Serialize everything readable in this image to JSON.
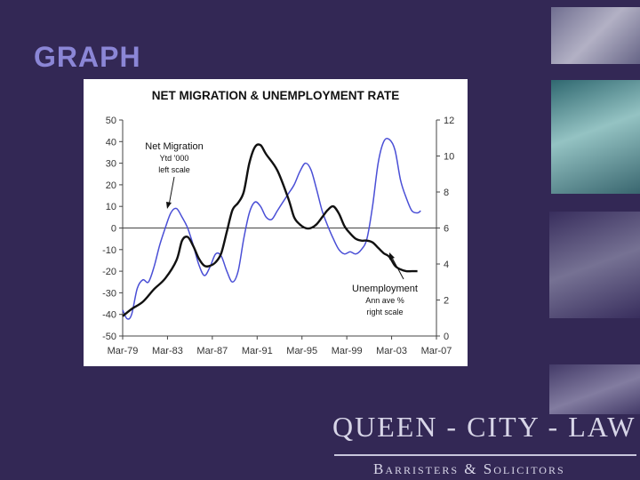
{
  "slide": {
    "title": "GRAPH"
  },
  "firm": {
    "name": "QUEEN - CITY - LAW",
    "tagline": "Barristers & Solicitors"
  },
  "decorations": [
    "pen-and-glasses-photo",
    "fountain-pen-photo",
    "keyboard-keys-photo",
    "clock-photo"
  ],
  "chart_data": {
    "type": "line",
    "title": "NET MIGRATION & UNEMPLOYMENT RATE",
    "x_ticks": [
      "Mar-79",
      "Mar-83",
      "Mar-87",
      "Mar-91",
      "Mar-95",
      "Mar-99",
      "Mar-03",
      "Mar-07"
    ],
    "y_left": {
      "min": -50,
      "max": 50,
      "ticks": [
        50,
        40,
        30,
        20,
        10,
        0,
        -10,
        -20,
        -30,
        -40,
        -50
      ]
    },
    "y_right": {
      "min": 0,
      "max": 12,
      "ticks": [
        12,
        10,
        8,
        6,
        4,
        2,
        0
      ]
    },
    "grid": false,
    "series": [
      {
        "name": "Net Migration",
        "annotation": [
          "Net Migration",
          "Ytd '000",
          "left scale"
        ],
        "axis": "left",
        "color": "#4a4fd6",
        "points": [
          [
            1979.2,
            -38
          ],
          [
            1979.6,
            -42
          ],
          [
            1980.0,
            -40
          ],
          [
            1980.5,
            -28
          ],
          [
            1981.0,
            -24
          ],
          [
            1981.5,
            -25
          ],
          [
            1982.0,
            -18
          ],
          [
            1982.5,
            -8
          ],
          [
            1983.0,
            0
          ],
          [
            1983.5,
            7
          ],
          [
            1984.0,
            9
          ],
          [
            1984.5,
            5
          ],
          [
            1985.0,
            0
          ],
          [
            1985.5,
            -8
          ],
          [
            1986.0,
            -17
          ],
          [
            1986.5,
            -22
          ],
          [
            1987.0,
            -18
          ],
          [
            1987.5,
            -12
          ],
          [
            1988.0,
            -13
          ],
          [
            1988.5,
            -20
          ],
          [
            1989.0,
            -25
          ],
          [
            1989.5,
            -20
          ],
          [
            1990.0,
            -5
          ],
          [
            1990.5,
            7
          ],
          [
            1991.0,
            12
          ],
          [
            1991.5,
            10
          ],
          [
            1992.0,
            5
          ],
          [
            1992.5,
            4
          ],
          [
            1993.0,
            8
          ],
          [
            1993.5,
            12
          ],
          [
            1994.0,
            16
          ],
          [
            1994.5,
            20
          ],
          [
            1995.0,
            26
          ],
          [
            1995.5,
            30
          ],
          [
            1996.0,
            27
          ],
          [
            1996.5,
            18
          ],
          [
            1997.0,
            8
          ],
          [
            1997.5,
            1
          ],
          [
            1998.0,
            -5
          ],
          [
            1998.5,
            -10
          ],
          [
            1999.0,
            -12
          ],
          [
            1999.5,
            -11
          ],
          [
            2000.0,
            -12
          ],
          [
            2000.5,
            -10
          ],
          [
            2001.0,
            -5
          ],
          [
            2001.5,
            10
          ],
          [
            2002.0,
            30
          ],
          [
            2002.5,
            40
          ],
          [
            2003.0,
            41
          ],
          [
            2003.5,
            36
          ],
          [
            2004.0,
            22
          ],
          [
            2004.5,
            14
          ],
          [
            2005.0,
            8
          ],
          [
            2005.5,
            7
          ],
          [
            2005.8,
            8
          ]
        ]
      },
      {
        "name": "Unemployment",
        "annotation": [
          "Unemployment",
          "Ann ave %",
          "right scale"
        ],
        "axis": "right",
        "color": "#111111",
        "points": [
          [
            1979.2,
            1.1
          ],
          [
            1980.0,
            1.5
          ],
          [
            1981.0,
            1.9
          ],
          [
            1982.0,
            2.6
          ],
          [
            1983.0,
            3.2
          ],
          [
            1984.0,
            4.2
          ],
          [
            1984.5,
            5.3
          ],
          [
            1985.0,
            5.5
          ],
          [
            1985.5,
            5.0
          ],
          [
            1986.0,
            4.3
          ],
          [
            1986.5,
            3.9
          ],
          [
            1987.0,
            3.9
          ],
          [
            1987.5,
            4.1
          ],
          [
            1988.0,
            4.6
          ],
          [
            1988.5,
            5.8
          ],
          [
            1989.0,
            7.0
          ],
          [
            1989.5,
            7.4
          ],
          [
            1990.0,
            8.0
          ],
          [
            1990.5,
            9.6
          ],
          [
            1991.0,
            10.5
          ],
          [
            1991.5,
            10.6
          ],
          [
            1992.0,
            10.1
          ],
          [
            1993.0,
            9.2
          ],
          [
            1994.0,
            7.6
          ],
          [
            1994.5,
            6.6
          ],
          [
            1995.0,
            6.2
          ],
          [
            1995.5,
            6.0
          ],
          [
            1996.0,
            6.0
          ],
          [
            1996.5,
            6.2
          ],
          [
            1997.0,
            6.6
          ],
          [
            1997.5,
            7.0
          ],
          [
            1998.0,
            7.2
          ],
          [
            1998.5,
            6.8
          ],
          [
            1999.0,
            6.1
          ],
          [
            1999.5,
            5.7
          ],
          [
            2000.0,
            5.4
          ],
          [
            2000.5,
            5.3
          ],
          [
            2001.0,
            5.3
          ],
          [
            2001.5,
            5.2
          ],
          [
            2002.0,
            4.9
          ],
          [
            2002.5,
            4.6
          ],
          [
            2003.0,
            4.4
          ],
          [
            2003.5,
            3.9
          ],
          [
            2004.0,
            3.7
          ],
          [
            2004.5,
            3.6
          ],
          [
            2005.0,
            3.6
          ],
          [
            2005.5,
            3.6
          ]
        ]
      }
    ]
  }
}
